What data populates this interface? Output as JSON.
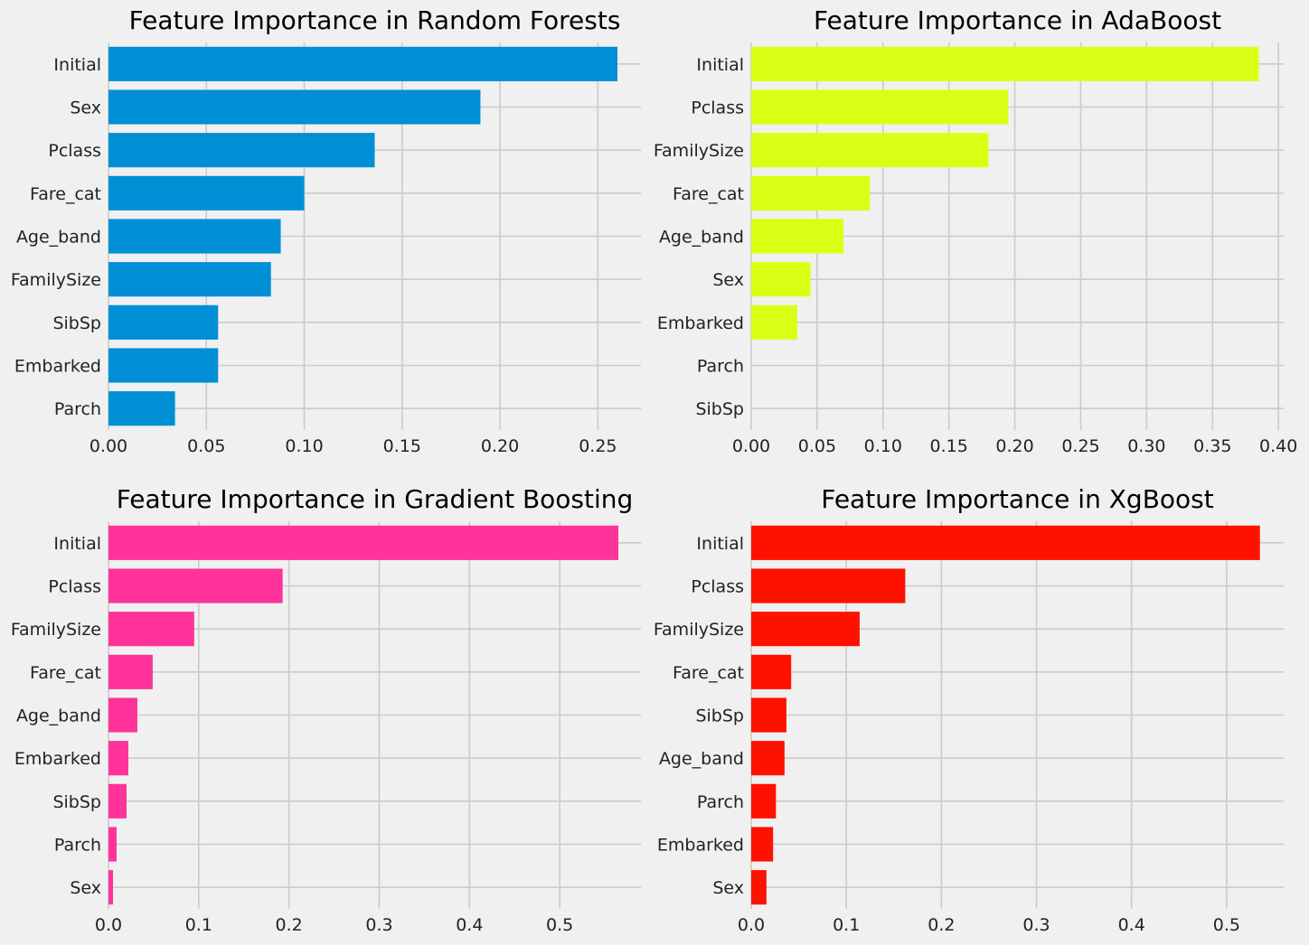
{
  "chart_data": [
    {
      "type": "bar",
      "orientation": "horizontal",
      "title": "Feature Importance in Random Forests",
      "categories": [
        "Initial",
        "Sex",
        "Pclass",
        "Fare_cat",
        "Age_band",
        "FamilySize",
        "SibSp",
        "Embarked",
        "Parch"
      ],
      "values": [
        0.26,
        0.19,
        0.136,
        0.1,
        0.088,
        0.083,
        0.056,
        0.056,
        0.034
      ],
      "xlim": [
        0,
        0.272
      ],
      "xticks": [
        0.0,
        0.05,
        0.1,
        0.15,
        0.2,
        0.25
      ],
      "xtick_labels": [
        "0.00",
        "0.05",
        "0.10",
        "0.15",
        "0.20",
        "0.25"
      ],
      "color": "#008fd5",
      "grid": true
    },
    {
      "type": "bar",
      "orientation": "horizontal",
      "title": "Feature Importance in AdaBoost",
      "categories": [
        "Initial",
        "Pclass",
        "FamilySize",
        "Fare_cat",
        "Age_band",
        "Sex",
        "Embarked",
        "Parch",
        "SibSp"
      ],
      "values": [
        0.385,
        0.195,
        0.18,
        0.09,
        0.07,
        0.045,
        0.035,
        0.0,
        0.0
      ],
      "xlim": [
        0,
        0.404
      ],
      "xticks": [
        0.0,
        0.05,
        0.1,
        0.15,
        0.2,
        0.25,
        0.3,
        0.35,
        0.4
      ],
      "xtick_labels": [
        "0.00",
        "0.05",
        "0.10",
        "0.15",
        "0.20",
        "0.25",
        "0.30",
        "0.35",
        "0.40"
      ],
      "color": "#dbff14",
      "grid": true
    },
    {
      "type": "bar",
      "orientation": "horizontal",
      "title": "Feature Importance in Gradient Boosting",
      "categories": [
        "Initial",
        "Pclass",
        "FamilySize",
        "Fare_cat",
        "Age_band",
        "Embarked",
        "SibSp",
        "Parch",
        "Sex"
      ],
      "values": [
        0.565,
        0.193,
        0.095,
        0.049,
        0.032,
        0.022,
        0.02,
        0.009,
        0.005
      ],
      "xlim": [
        0,
        0.59
      ],
      "xticks": [
        0.0,
        0.1,
        0.2,
        0.3,
        0.4,
        0.5
      ],
      "xtick_labels": [
        "0.0",
        "0.1",
        "0.2",
        "0.3",
        "0.4",
        "0.5"
      ],
      "color": "#ff3399",
      "grid": true
    },
    {
      "type": "bar",
      "orientation": "horizontal",
      "title": "Feature Importance in XgBoost",
      "categories": [
        "Initial",
        "Pclass",
        "FamilySize",
        "Fare_cat",
        "SibSp",
        "Age_band",
        "Parch",
        "Embarked",
        "Sex"
      ],
      "values": [
        0.535,
        0.162,
        0.114,
        0.042,
        0.037,
        0.035,
        0.026,
        0.023,
        0.016
      ],
      "xlim": [
        0,
        0.56
      ],
      "xticks": [
        0.0,
        0.1,
        0.2,
        0.3,
        0.4,
        0.5
      ],
      "xtick_labels": [
        "0.0",
        "0.1",
        "0.2",
        "0.3",
        "0.4",
        "0.5"
      ],
      "color": "#ff1100",
      "grid": true
    }
  ]
}
